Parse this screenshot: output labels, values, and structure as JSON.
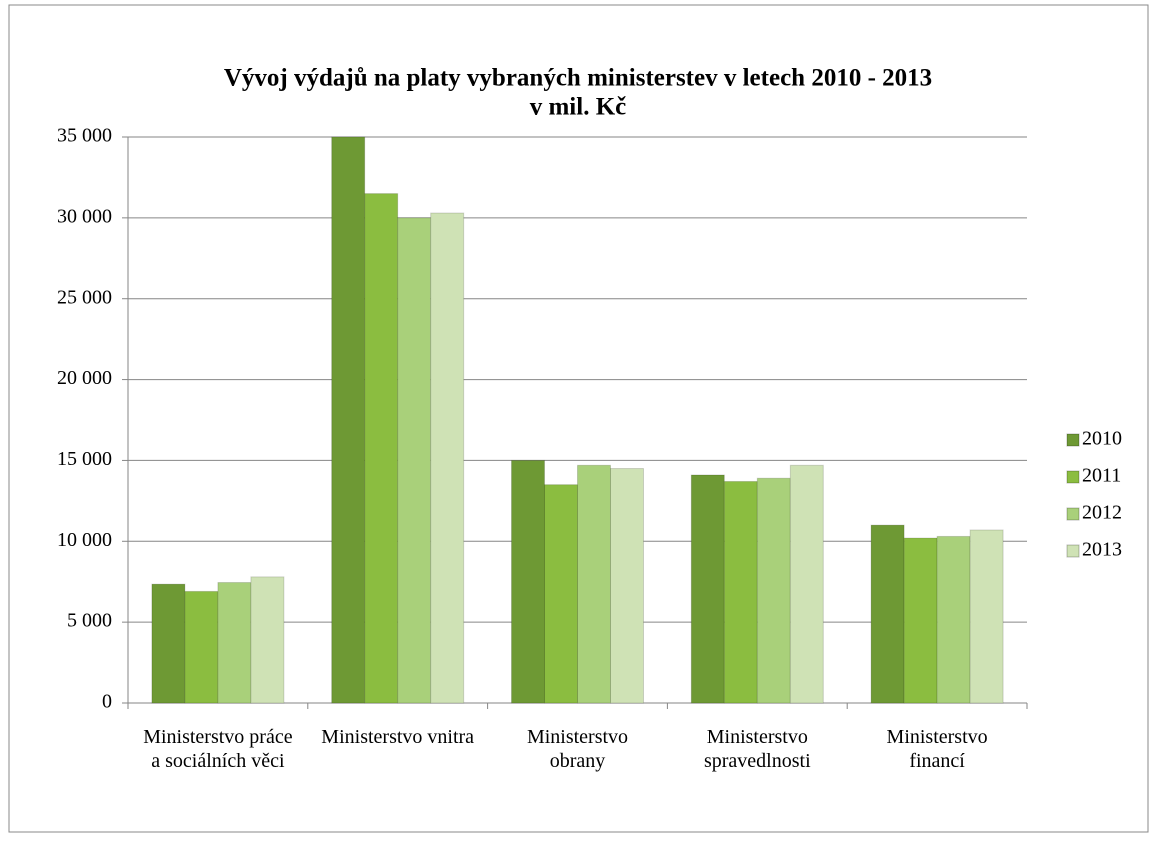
{
  "chart_data": {
    "type": "bar",
    "title": "Vývoj výdajů na platy vybraných ministerstev v letech 2010 - 2013",
    "subtitle": "v mil. Kč",
    "categories": [
      "Ministerstvo práce a sociálních věci",
      "Ministerstvo vnitra",
      "Ministerstvo obrany",
      "Ministerstvo spravedlnosti",
      "Ministerstvo financí"
    ],
    "series": [
      {
        "name": "2010",
        "color": "#6e9934",
        "values": [
          7350,
          35000,
          15000,
          14100,
          11000
        ]
      },
      {
        "name": "2011",
        "color": "#8bbd40",
        "values": [
          6900,
          31500,
          13500,
          13700,
          10200
        ]
      },
      {
        "name": "2012",
        "color": "#a9d07a",
        "values": [
          7450,
          30000,
          14700,
          13900,
          10300
        ]
      },
      {
        "name": "2013",
        "color": "#cfe2b5",
        "values": [
          7800,
          30300,
          14500,
          14700,
          10700
        ]
      }
    ],
    "ylim": [
      0,
      35000
    ],
    "yticks": [
      0,
      {
        "value": 5000,
        "label": "5 000"
      },
      {
        "value": 10000,
        "label": "10 000"
      },
      {
        "value": 15000,
        "label": "15 000"
      },
      {
        "value": 20000,
        "label": "20 000"
      },
      {
        "value": 25000,
        "label": "25 000"
      },
      {
        "value": 30000,
        "label": "30 000"
      },
      {
        "value": 35000,
        "label": "35 000"
      }
    ],
    "grid": true,
    "legend": "right"
  }
}
